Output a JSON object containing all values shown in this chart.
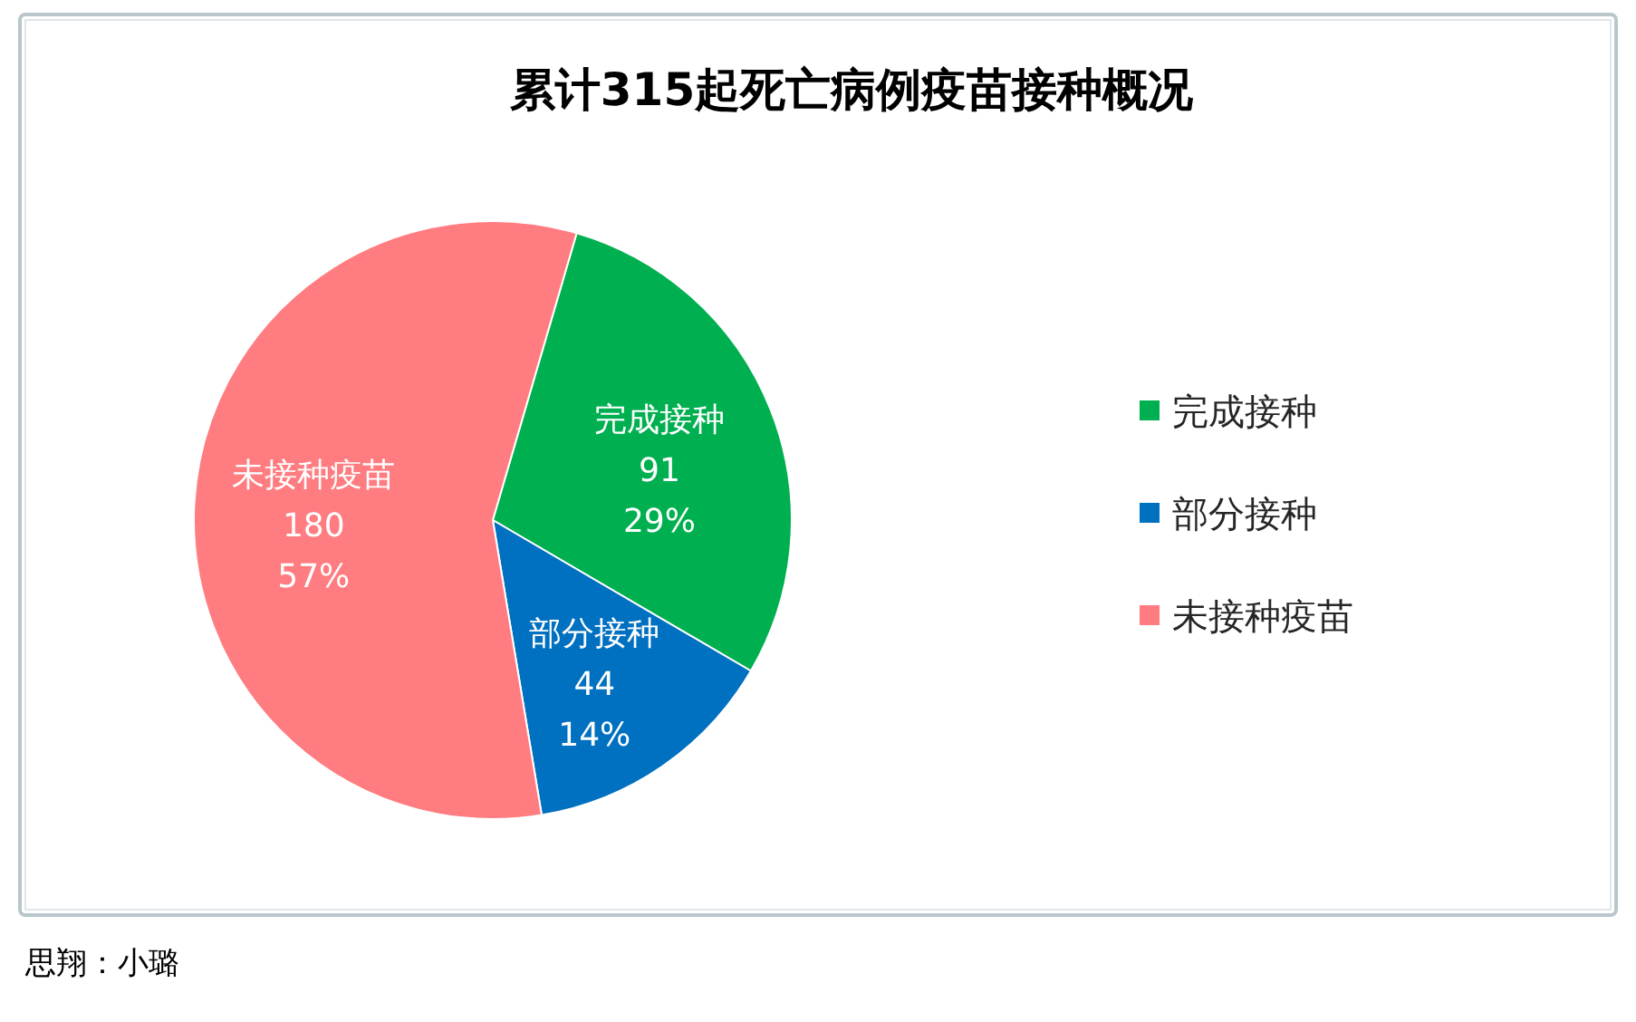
{
  "chart_data": {
    "type": "pie",
    "title": "累计315起死亡病例疫苗接种概况",
    "categories": [
      "完成接种",
      "部分接种",
      "未接种疫苗"
    ],
    "values": [
      91,
      44,
      180
    ],
    "colors": [
      "#00b050",
      "#0070c0",
      "#ff7c80"
    ],
    "value_labels": [
      "91\n29%",
      "44\n14%",
      "180\n57%"
    ],
    "data_labels": true,
    "legend": "right",
    "annotations": [
      "思翔：小璐"
    ]
  }
}
